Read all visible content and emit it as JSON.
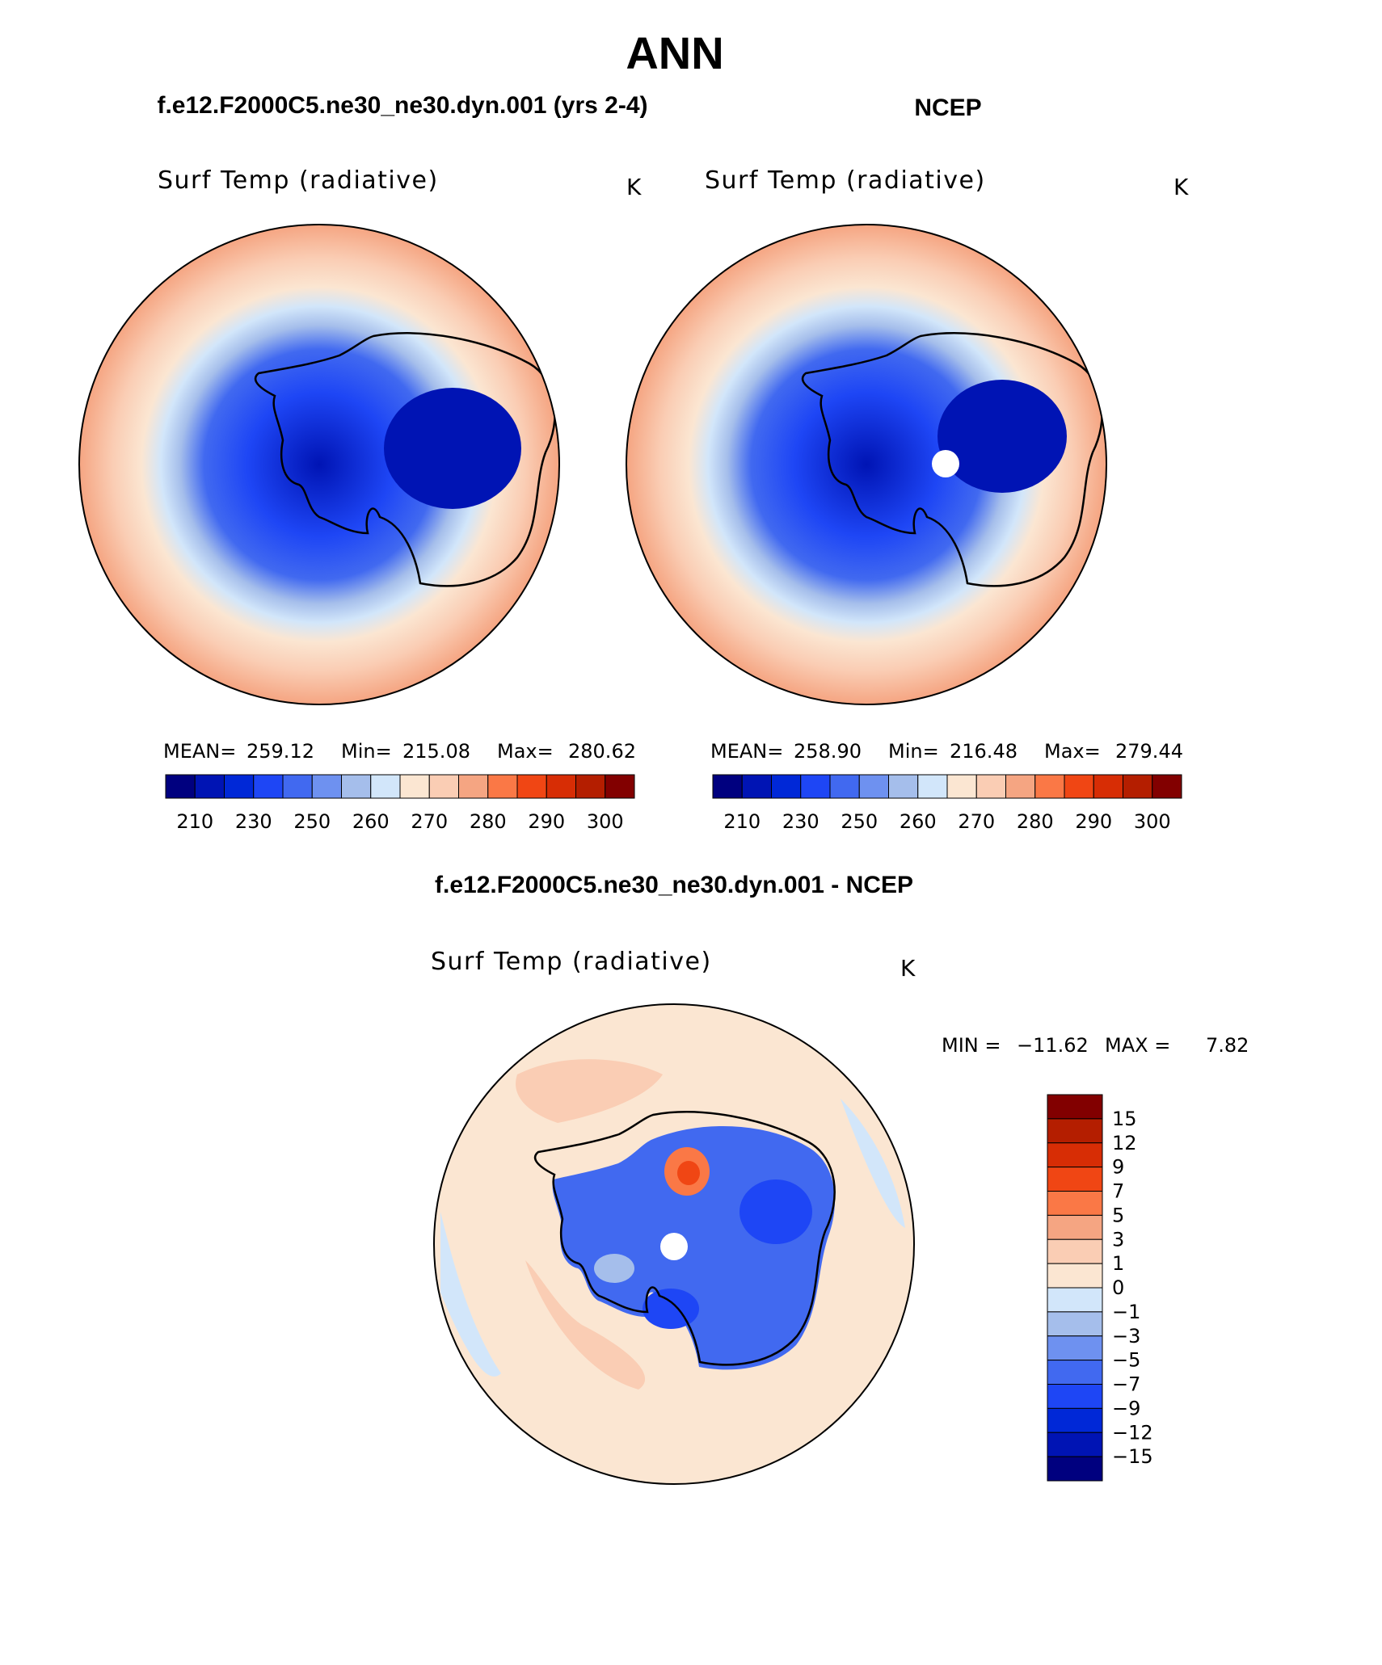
{
  "page_title": "ANN",
  "colors": {
    "land_outline": "#000000",
    "abs_palette": [
      "#00007f",
      "#0014b4",
      "#0028d7",
      "#1e46f5",
      "#4169f0",
      "#6e91f0",
      "#a5beeb",
      "#d2e6fa",
      "#fbe6d2",
      "#facdb4",
      "#f5a582",
      "#fa7846",
      "#f04614",
      "#d72d05",
      "#b41e00",
      "#820000"
    ],
    "diff_palette": [
      "#00007f",
      "#0014b4",
      "#0028d7",
      "#1e46f5",
      "#4169f0",
      "#6e91f0",
      "#a5beeb",
      "#d2e6fa",
      "#fbe6d2",
      "#facdb4",
      "#f5a582",
      "#fa7846",
      "#f04614",
      "#d72d05",
      "#b41e00",
      "#820000"
    ]
  },
  "chart_data": [
    {
      "type": "heatmap",
      "projection": "south-polar-stereographic",
      "title": "f.e12.F2000C5.ne30_ne30.dyn.001 (yrs 2-4)",
      "subtitle": "Surf Temp (radiative)",
      "units": "K",
      "stats": {
        "mean": "259.12",
        "min": "215.08",
        "max": "280.62"
      },
      "stats_labels": {
        "mean": "MEAN=",
        "min": "Min=",
        "max": "Max="
      },
      "colorbar": {
        "orientation": "horizontal",
        "tick_labels": [
          "210",
          "230",
          "250",
          "260",
          "270",
          "280",
          "290",
          "300"
        ]
      }
    },
    {
      "type": "heatmap",
      "projection": "south-polar-stereographic",
      "title": "NCEP",
      "subtitle": "Surf Temp (radiative)",
      "units": "K",
      "stats": {
        "mean": "258.90",
        "min": "216.48",
        "max": "279.44"
      },
      "stats_labels": {
        "mean": "MEAN=",
        "min": "Min=",
        "max": "Max="
      },
      "colorbar": {
        "orientation": "horizontal",
        "tick_labels": [
          "210",
          "230",
          "250",
          "260",
          "270",
          "280",
          "290",
          "300"
        ]
      }
    },
    {
      "type": "heatmap",
      "projection": "south-polar-stereographic",
      "title": "f.e12.F2000C5.ne30_ne30.dyn.001 - NCEP",
      "subtitle": "Surf Temp (radiative)",
      "units": "K",
      "stats_text": {
        "min_label": "MIN =",
        "min": "−11.62",
        "max_label": "MAX =",
        "max": "7.82"
      },
      "colorbar": {
        "orientation": "vertical",
        "tick_labels": [
          "15",
          "12",
          "9",
          "7",
          "5",
          "3",
          "1",
          "0",
          "−1",
          "−3",
          "−5",
          "−7",
          "−9",
          "−12",
          "−15"
        ]
      }
    }
  ]
}
